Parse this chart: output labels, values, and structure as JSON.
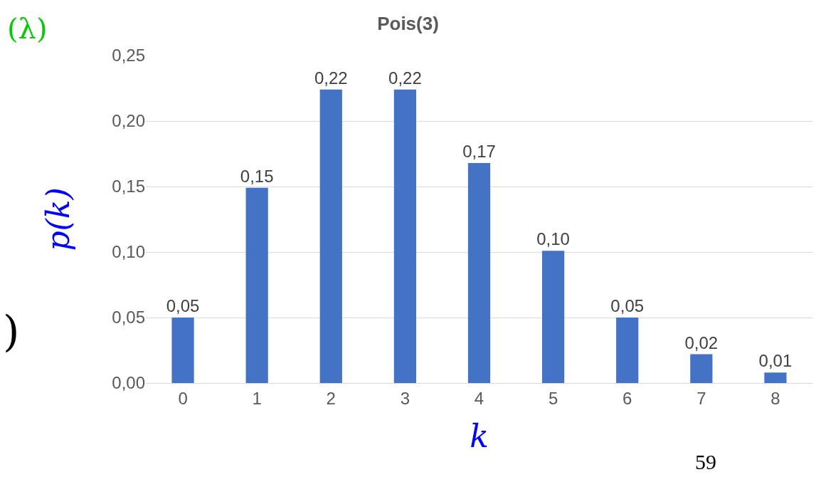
{
  "chart_data": {
    "type": "bar",
    "title": "Pois(3)",
    "xlabel": "k",
    "ylabel": "p(k)",
    "categories": [
      "0",
      "1",
      "2",
      "3",
      "4",
      "5",
      "6",
      "7",
      "8"
    ],
    "values": [
      0.05,
      0.149,
      0.224,
      0.224,
      0.168,
      0.101,
      0.05,
      0.022,
      0.008
    ],
    "value_labels": [
      "0,05",
      "0,15",
      "0,22",
      "0,22",
      "0,17",
      "0,10",
      "0,05",
      "0,02",
      "0,01"
    ],
    "color": "#4472c4",
    "ylim": [
      0,
      0.25
    ],
    "yticks": [
      {
        "value": 0,
        "label": "0,00"
      },
      {
        "value": 0.05,
        "label": "0,05"
      },
      {
        "value": 0.1,
        "label": "0,10"
      },
      {
        "value": 0.15,
        "label": "0,15"
      },
      {
        "value": 0.2,
        "label": "0,20"
      },
      {
        "value": 0.25,
        "label": "0,25"
      }
    ],
    "grid": "y",
    "legend": false,
    "annotations": [
      "(λ)",
      ")",
      "59"
    ]
  }
}
